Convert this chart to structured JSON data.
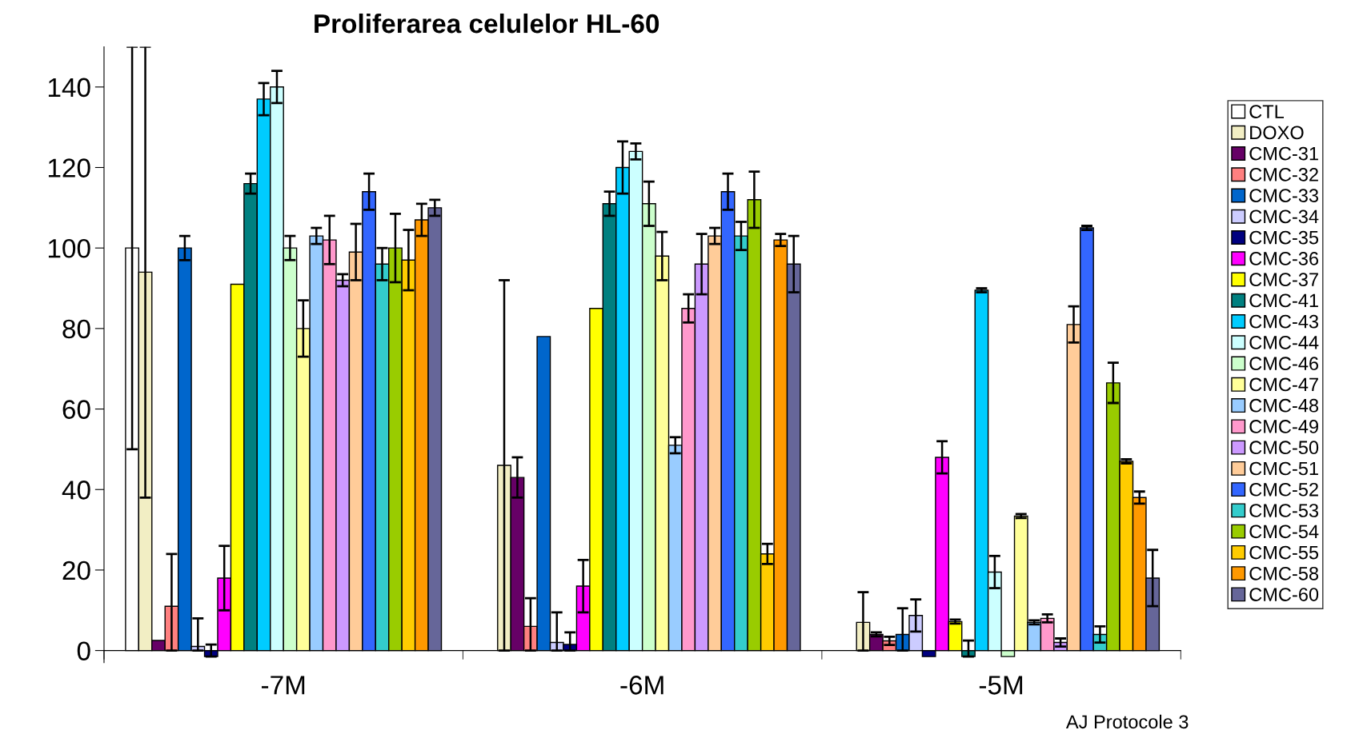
{
  "chart_data": {
    "type": "bar",
    "title": "Proliferarea celulelor HL-60",
    "categories": [
      "-7M",
      "-6M",
      "-5M"
    ],
    "ylim": [
      -3,
      150
    ],
    "yticks": [
      0,
      20,
      40,
      60,
      80,
      100,
      120,
      140
    ],
    "grid": false,
    "legend": "right",
    "annotations": [
      "AJ Protocole 3"
    ],
    "series": [
      {
        "name": "CTL",
        "color": "#ffffff",
        "values": [
          100,
          null,
          null
        ],
        "errors": [
          50,
          null,
          null
        ]
      },
      {
        "name": "DOXO",
        "color": "#f2eec4",
        "values": [
          94,
          46,
          7
        ],
        "errors": [
          56,
          46,
          [
            0,
            14.5
          ]
        ]
      },
      {
        "name": "CMC-31",
        "color": "#660066",
        "values": [
          2.5,
          43,
          4
        ],
        "errors": [
          null,
          5,
          0.5
        ]
      },
      {
        "name": "CMC-32",
        "color": "#ff8080",
        "values": [
          11,
          6,
          2.4
        ],
        "errors": [
          [
            0,
            24
          ],
          [
            0,
            13
          ],
          1
        ]
      },
      {
        "name": "CMC-33",
        "color": "#0066cc",
        "values": [
          100,
          78,
          4
        ],
        "errors": [
          3,
          null,
          [
            0,
            10.5
          ]
        ]
      },
      {
        "name": "CMC-34",
        "color": "#ccccff",
        "values": [
          1,
          2,
          8.7
        ],
        "errors": [
          [
            0,
            8
          ],
          [
            0,
            9.5
          ],
          4
        ]
      },
      {
        "name": "CMC-35",
        "color": "#000080",
        "values": [
          -1.5,
          1.5,
          -1.5
        ],
        "errors": [
          [
            -1.5,
            1.5
          ],
          [
            0,
            4.5
          ],
          null
        ]
      },
      {
        "name": "CMC-36",
        "color": "#ff00ff",
        "values": [
          18,
          16,
          48
        ],
        "errors": [
          8,
          6.5,
          4
        ]
      },
      {
        "name": "CMC-37",
        "color": "#ffff00",
        "values": [
          91,
          85,
          7.2
        ],
        "errors": [
          null,
          null,
          0.5
        ]
      },
      {
        "name": "CMC-41",
        "color": "#008080",
        "values": [
          116,
          111,
          -1.5
        ],
        "errors": [
          2.5,
          3,
          [
            -1.5,
            2.5
          ]
        ]
      },
      {
        "name": "CMC-43",
        "color": "#00ccff",
        "values": [
          137,
          120,
          89.5
        ],
        "errors": [
          4,
          6.5,
          0.5
        ]
      },
      {
        "name": "CMC-44",
        "color": "#ccffff",
        "values": [
          140,
          124,
          19.5
        ],
        "errors": [
          4,
          2,
          4
        ]
      },
      {
        "name": "CMC-46",
        "color": "#ccffcc",
        "values": [
          100,
          111,
          -1.5
        ],
        "errors": [
          3,
          5.5,
          null
        ]
      },
      {
        "name": "CMC-47",
        "color": "#ffff99",
        "values": [
          80,
          98,
          33.4
        ],
        "errors": [
          7,
          6,
          0.5
        ]
      },
      {
        "name": "CMC-48",
        "color": "#99ccff",
        "values": [
          103,
          51,
          7
        ],
        "errors": [
          2,
          2,
          0.5
        ]
      },
      {
        "name": "CMC-49",
        "color": "#ff99cc",
        "values": [
          102,
          85,
          8
        ],
        "errors": [
          6,
          3.5,
          1
        ]
      },
      {
        "name": "CMC-50",
        "color": "#cc99ff",
        "values": [
          92,
          96,
          2
        ],
        "errors": [
          1.5,
          7.5,
          1
        ]
      },
      {
        "name": "CMC-51",
        "color": "#ffcc99",
        "values": [
          99,
          103,
          81
        ],
        "errors": [
          7,
          2,
          4.5
        ]
      },
      {
        "name": "CMC-52",
        "color": "#3366ff",
        "values": [
          114,
          114,
          105
        ],
        "errors": [
          4.5,
          4.5,
          0.5
        ]
      },
      {
        "name": "CMC-53",
        "color": "#33cccc",
        "values": [
          96,
          103,
          4
        ],
        "errors": [
          4,
          3.5,
          2
        ]
      },
      {
        "name": "CMC-54",
        "color": "#99cc00",
        "values": [
          100,
          112,
          66.5
        ],
        "errors": [
          8.5,
          7,
          5
        ]
      },
      {
        "name": "CMC-55",
        "color": "#ffcc00",
        "values": [
          97,
          24,
          47
        ],
        "errors": [
          7.5,
          2.5,
          0.5
        ]
      },
      {
        "name": "CMC-58",
        "color": "#ff9900",
        "values": [
          107,
          102,
          38
        ],
        "errors": [
          4,
          1.5,
          1.5
        ]
      },
      {
        "name": "CMC-60",
        "color": "#666699",
        "values": [
          110,
          96,
          18
        ],
        "errors": [
          2,
          7,
          7
        ]
      }
    ]
  }
}
